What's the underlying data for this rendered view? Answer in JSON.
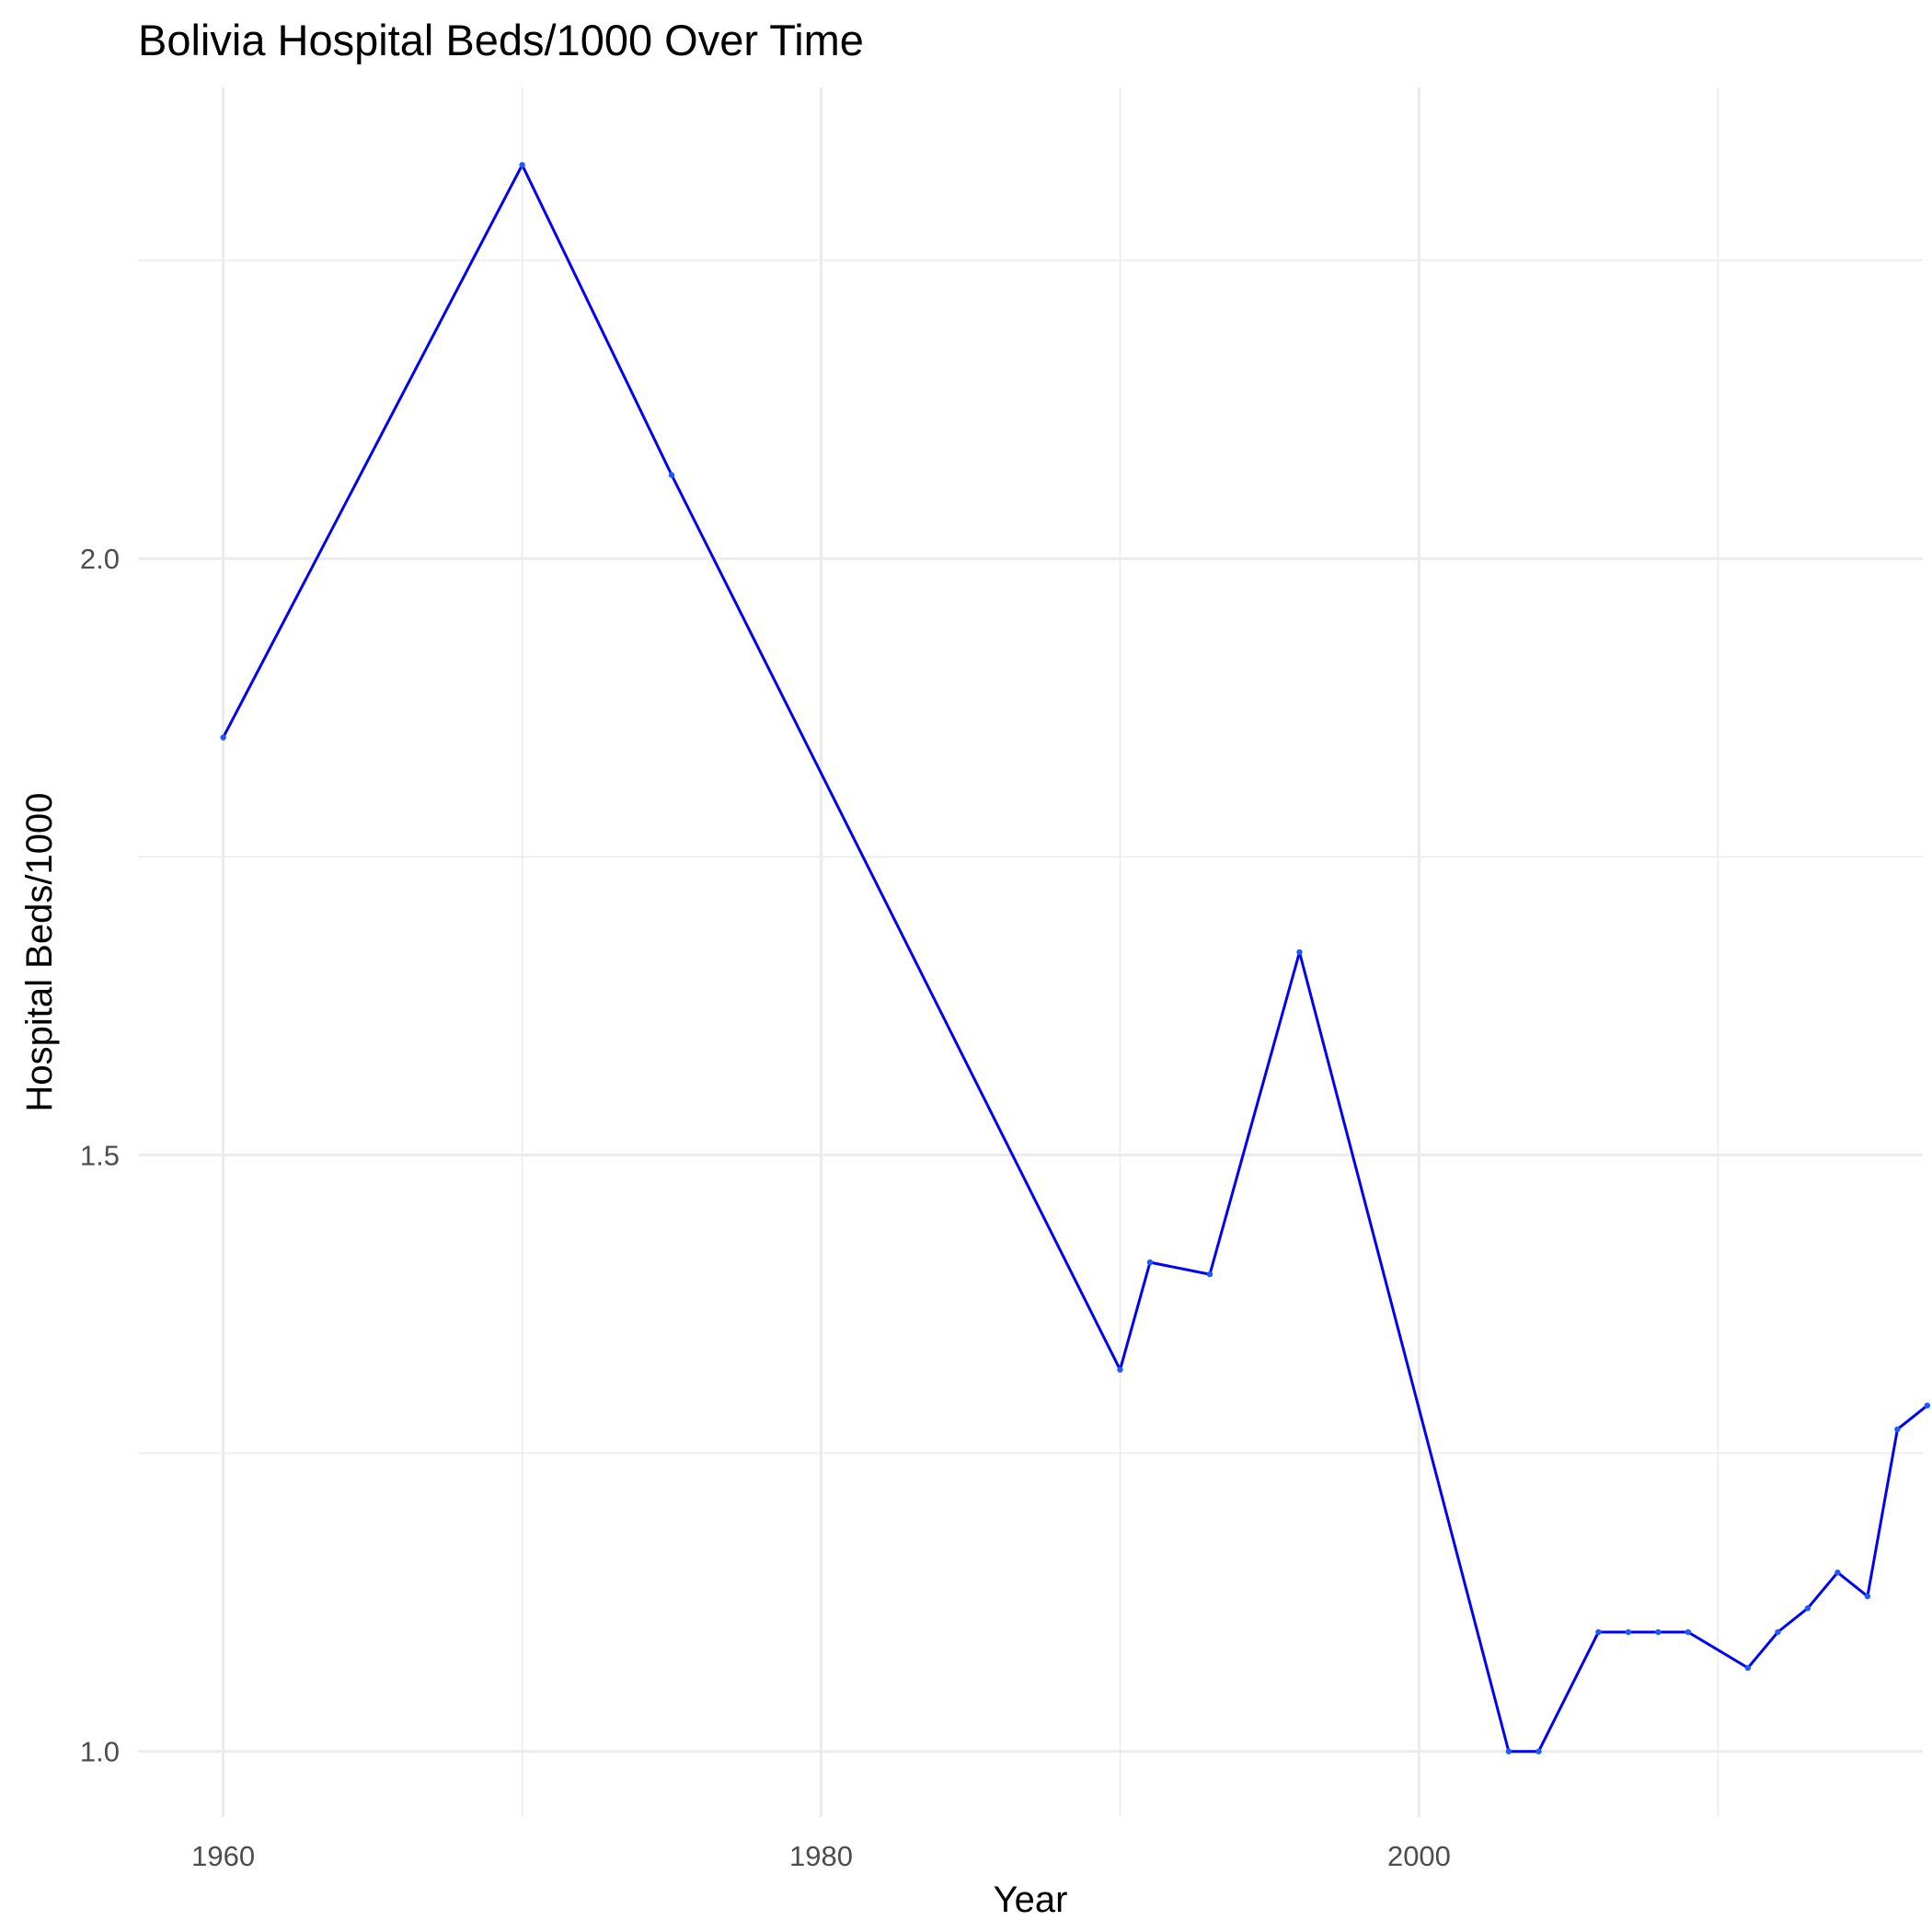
{
  "chart_data": {
    "type": "line",
    "title": "Bolivia Hospital Beds/1000 Over Time",
    "xlabel": "Year",
    "ylabel": "Hospital Beds/1000",
    "xlim": [
      1957.15,
      2016.85
    ],
    "ylim": [
      0.945,
      2.395
    ],
    "x_ticks": [
      1960,
      1980,
      2000
    ],
    "x_tick_labels": [
      "1960",
      "1980",
      "2000"
    ],
    "y_ticks": [
      1.0,
      1.5,
      2.0
    ],
    "y_tick_labels": [
      "1.0",
      "1.5",
      "2.0"
    ],
    "grid": true,
    "legend": "none",
    "colors": {
      "line": "#0000ff",
      "points": "#1e5aff",
      "grid": "#ebebeb",
      "background": "#ffffff"
    },
    "series": [
      {
        "x": [
          1960,
          1970,
          1975,
          1990,
          1991,
          1993,
          1996,
          2003,
          2004,
          2006,
          2007,
          2008,
          2009,
          2011,
          2012,
          2013,
          2014,
          2015,
          2016,
          2017
        ],
        "y": [
          1.85,
          2.33,
          2.07,
          1.32,
          1.41,
          1.4,
          1.67,
          1.0,
          1.0,
          1.1,
          1.1,
          1.1,
          1.1,
          1.07,
          1.1,
          1.12,
          1.15,
          1.13,
          1.27,
          1.29
        ]
      }
    ]
  }
}
